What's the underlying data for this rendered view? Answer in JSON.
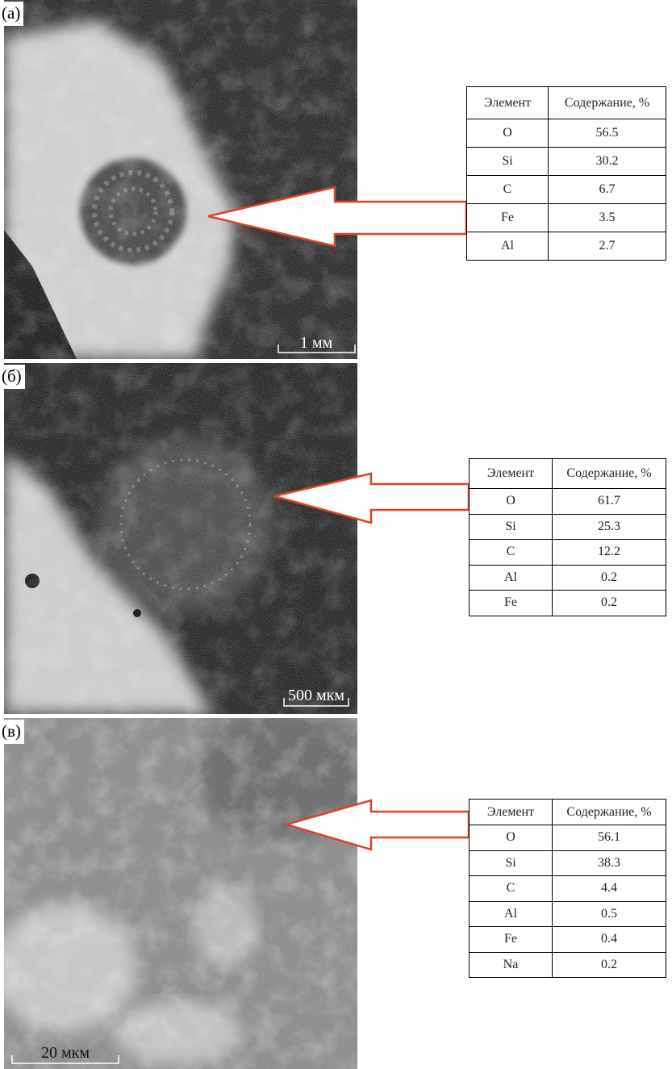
{
  "panels": [
    {
      "label": "(а)",
      "scale_bar": "1 мм",
      "table": {
        "header": [
          "Элемент",
          "Содержание, %"
        ],
        "rows": [
          [
            "O",
            "56.5"
          ],
          [
            "Si",
            "30.2"
          ],
          [
            "C",
            "6.7"
          ],
          [
            "Fe",
            "3.5"
          ],
          [
            "Al",
            "2.7"
          ]
        ]
      }
    },
    {
      "label": "(б)",
      "scale_bar": "500 мкм",
      "table": {
        "header": [
          "Элемент",
          "Содержание, %"
        ],
        "rows": [
          [
            "O",
            "61.7"
          ],
          [
            "Si",
            "25.3"
          ],
          [
            "C",
            "12.2"
          ],
          [
            "Al",
            "0.2"
          ],
          [
            "Fe",
            "0.2"
          ]
        ]
      }
    },
    {
      "label": "(в)",
      "scale_bar": "20 мкм",
      "table": {
        "header": [
          "Элемент",
          "Содержание, %"
        ],
        "rows": [
          [
            "O",
            "56.1"
          ],
          [
            "Si",
            "38.3"
          ],
          [
            "C",
            "4.4"
          ],
          [
            "Al",
            "0.5"
          ],
          [
            "Fe",
            "0.4"
          ],
          [
            "Na",
            "0.2"
          ]
        ]
      }
    }
  ]
}
